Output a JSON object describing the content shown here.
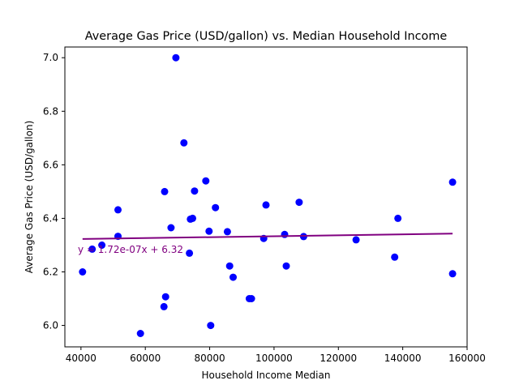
{
  "chart_data": {
    "type": "scatter",
    "title": "Average Gas Price (USD/gallon) vs. Median Household Income",
    "xlabel": "Household Income Median",
    "ylabel": "Average Gas Price (USD/gallon)",
    "xlim": [
      35000,
      160000
    ],
    "ylim": [
      5.92,
      7.04
    ],
    "xticks": [
      40000,
      60000,
      80000,
      100000,
      120000,
      140000,
      160000
    ],
    "xtick_labels": [
      "40000",
      "60000",
      "80000",
      "100000",
      "120000",
      "140000",
      "160000"
    ],
    "yticks": [
      6.0,
      6.2,
      6.4,
      6.6,
      6.8,
      7.0
    ],
    "ytick_labels": [
      "6.0",
      "6.2",
      "6.4",
      "6.6",
      "6.8",
      "7.0"
    ],
    "grid": false,
    "point_color": "#0000ff",
    "line_color": "#800080",
    "series": [
      {
        "points": [
          [
            40500,
            6.2
          ],
          [
            43500,
            6.285
          ],
          [
            46500,
            6.3
          ],
          [
            51500,
            6.432
          ],
          [
            51500,
            6.333
          ],
          [
            58500,
            5.97
          ],
          [
            65800,
            6.07
          ],
          [
            66000,
            6.5
          ],
          [
            66300,
            6.107
          ],
          [
            68000,
            6.365
          ],
          [
            69500,
            7.0
          ],
          [
            72000,
            6.682
          ],
          [
            73700,
            6.27
          ],
          [
            74000,
            6.397
          ],
          [
            74700,
            6.4
          ],
          [
            75300,
            6.502
          ],
          [
            78800,
            6.54
          ],
          [
            79800,
            6.352
          ],
          [
            80300,
            6.0
          ],
          [
            81800,
            6.44
          ],
          [
            85500,
            6.35
          ],
          [
            86200,
            6.222
          ],
          [
            87300,
            6.18
          ],
          [
            92300,
            6.1
          ],
          [
            93000,
            6.1
          ],
          [
            96800,
            6.325
          ],
          [
            97500,
            6.45
          ],
          [
            103300,
            6.34
          ],
          [
            103800,
            6.222
          ],
          [
            107800,
            6.46
          ],
          [
            109200,
            6.332
          ],
          [
            125500,
            6.32
          ],
          [
            137500,
            6.255
          ],
          [
            138500,
            6.4
          ],
          [
            155500,
            6.535
          ],
          [
            155500,
            6.193
          ]
        ]
      }
    ],
    "regression": {
      "label": "y = 1.72e-07x + 6.32",
      "slope": 1.72e-07,
      "intercept": 6.316,
      "x_range": [
        40500,
        155500
      ]
    }
  }
}
